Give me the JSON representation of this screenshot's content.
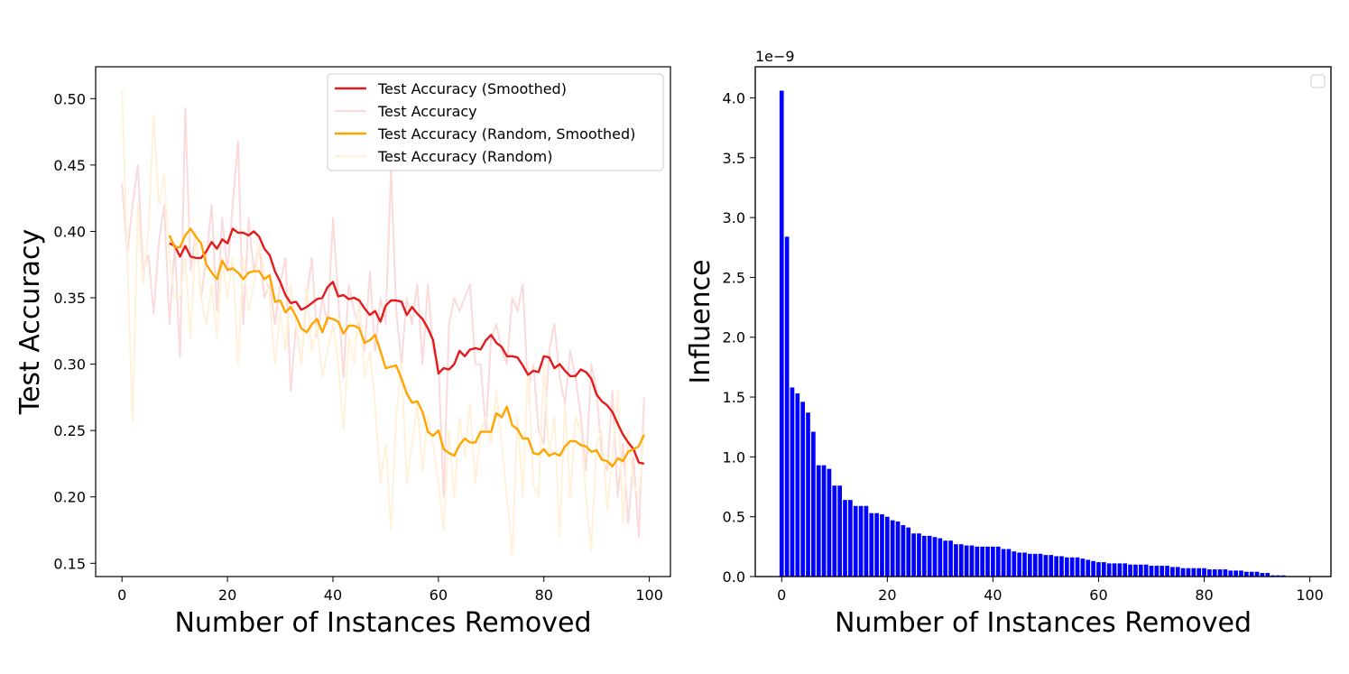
{
  "chart_data": [
    {
      "type": "line",
      "title": "",
      "xlabel": "Number of Instances Removed",
      "ylabel": "Test Accuracy",
      "xlim": [
        -5,
        104
      ],
      "ylim": [
        0.14,
        0.524
      ],
      "xticks": [
        0,
        20,
        40,
        60,
        80,
        100
      ],
      "yticks": [
        0.15,
        0.2,
        0.25,
        0.3,
        0.35,
        0.4,
        0.45,
        0.5
      ],
      "xtick_labels": [
        "0",
        "20",
        "40",
        "60",
        "80",
        "100"
      ],
      "ytick_labels": [
        "0.15",
        "0.20",
        "0.25",
        "0.30",
        "0.35",
        "0.40",
        "0.45",
        "0.50"
      ],
      "legend_position": "top-right",
      "series": [
        {
          "name": "Test Accuracy (Smoothed)",
          "color": "#e41a1c",
          "x": [
            9,
            10,
            11,
            12,
            13,
            14,
            15,
            16,
            17,
            18,
            19,
            20,
            21,
            22,
            23,
            24,
            25,
            26,
            27,
            28,
            29,
            30,
            31,
            32,
            33,
            34,
            35,
            36,
            37,
            38,
            39,
            40,
            41,
            42,
            43,
            44,
            45,
            46,
            47,
            48,
            49,
            50,
            51,
            52,
            53,
            54,
            55,
            56,
            57,
            58,
            59,
            60,
            61,
            62,
            63,
            64,
            65,
            66,
            67,
            68,
            69,
            70,
            71,
            72,
            73,
            74,
            75,
            76,
            77,
            78,
            79,
            80,
            81,
            82,
            83,
            84,
            85,
            86,
            87,
            88,
            89,
            90,
            91,
            92,
            93,
            94,
            95,
            96,
            97,
            98,
            99
          ],
          "values": [
            0.391,
            0.389,
            0.381,
            0.389,
            0.381,
            0.38,
            0.38,
            0.385,
            0.392,
            0.387,
            0.394,
            0.391,
            0.402,
            0.399,
            0.399,
            0.397,
            0.4,
            0.396,
            0.387,
            0.382,
            0.37,
            0.362,
            0.352,
            0.346,
            0.347,
            0.341,
            0.343,
            0.346,
            0.349,
            0.35,
            0.358,
            0.362,
            0.351,
            0.352,
            0.349,
            0.35,
            0.348,
            0.342,
            0.337,
            0.34,
            0.332,
            0.344,
            0.348,
            0.348,
            0.347,
            0.337,
            0.343,
            0.338,
            0.334,
            0.327,
            0.318,
            0.293,
            0.297,
            0.296,
            0.3,
            0.31,
            0.306,
            0.311,
            0.312,
            0.311,
            0.318,
            0.322,
            0.316,
            0.313,
            0.306,
            0.306,
            0.305,
            0.299,
            0.292,
            0.295,
            0.294,
            0.306,
            0.305,
            0.297,
            0.3,
            0.295,
            0.291,
            0.291,
            0.296,
            0.294,
            0.289,
            0.277,
            0.272,
            0.269,
            0.264,
            0.255,
            0.247,
            0.241,
            0.236,
            0.226,
            0.225
          ]
        },
        {
          "name": "Test Accuracy",
          "color": "#fbdadb",
          "x": [
            0,
            1,
            2,
            3,
            4,
            5,
            6,
            7,
            8,
            9,
            10,
            11,
            12,
            13,
            14,
            15,
            16,
            17,
            18,
            19,
            20,
            21,
            22,
            23,
            24,
            25,
            26,
            27,
            28,
            29,
            30,
            31,
            32,
            33,
            34,
            35,
            36,
            37,
            38,
            39,
            40,
            41,
            42,
            43,
            44,
            45,
            46,
            47,
            48,
            49,
            50,
            51,
            52,
            53,
            54,
            55,
            56,
            57,
            58,
            59,
            60,
            61,
            62,
            63,
            64,
            65,
            66,
            67,
            68,
            69,
            70,
            71,
            72,
            73,
            74,
            75,
            76,
            77,
            78,
            79,
            80,
            81,
            82,
            83,
            84,
            85,
            86,
            87,
            88,
            89,
            90,
            91,
            92,
            93,
            94,
            95,
            96,
            97,
            98,
            99
          ],
          "values": [
            0.436,
            0.383,
            0.42,
            0.45,
            0.37,
            0.382,
            0.338,
            0.392,
            0.42,
            0.33,
            0.39,
            0.305,
            0.493,
            0.37,
            0.4,
            0.35,
            0.38,
            0.42,
            0.34,
            0.41,
            0.37,
            0.42,
            0.468,
            0.33,
            0.41,
            0.37,
            0.39,
            0.35,
            0.36,
            0.33,
            0.36,
            0.38,
            0.28,
            0.33,
            0.3,
            0.35,
            0.38,
            0.32,
            0.35,
            0.33,
            0.41,
            0.35,
            0.29,
            0.36,
            0.34,
            0.33,
            0.31,
            0.37,
            0.31,
            0.35,
            0.33,
            0.447,
            0.34,
            0.3,
            0.35,
            0.33,
            0.36,
            0.3,
            0.36,
            0.31,
            0.3,
            0.2,
            0.33,
            0.35,
            0.34,
            0.35,
            0.36,
            0.3,
            0.3,
            0.25,
            0.32,
            0.33,
            0.31,
            0.3,
            0.35,
            0.34,
            0.36,
            0.28,
            0.3,
            0.25,
            0.24,
            0.31,
            0.33,
            0.29,
            0.27,
            0.31,
            0.29,
            0.26,
            0.22,
            0.3,
            0.28,
            0.23,
            0.22,
            0.28,
            0.2,
            0.24,
            0.18,
            0.23,
            0.17,
            0.275
          ]
        },
        {
          "name": "Test Accuracy (Random, Smoothed)",
          "color": "#ffa500",
          "x": [
            9,
            10,
            11,
            12,
            13,
            14,
            15,
            16,
            17,
            18,
            19,
            20,
            21,
            22,
            23,
            24,
            25,
            26,
            27,
            28,
            29,
            30,
            31,
            32,
            33,
            34,
            35,
            36,
            37,
            38,
            39,
            40,
            41,
            42,
            43,
            44,
            45,
            46,
            47,
            48,
            49,
            50,
            51,
            52,
            53,
            54,
            55,
            56,
            57,
            58,
            59,
            60,
            61,
            62,
            63,
            64,
            65,
            66,
            67,
            68,
            69,
            70,
            71,
            72,
            73,
            74,
            75,
            76,
            77,
            78,
            79,
            80,
            81,
            82,
            83,
            84,
            85,
            86,
            87,
            88,
            89,
            90,
            91,
            92,
            93,
            94,
            95,
            96,
            97,
            98,
            99
          ],
          "values": [
            0.397,
            0.388,
            0.388,
            0.397,
            0.402,
            0.396,
            0.391,
            0.375,
            0.369,
            0.364,
            0.378,
            0.371,
            0.372,
            0.369,
            0.364,
            0.369,
            0.37,
            0.37,
            0.364,
            0.367,
            0.347,
            0.348,
            0.339,
            0.343,
            0.336,
            0.327,
            0.324,
            0.33,
            0.334,
            0.324,
            0.335,
            0.334,
            0.332,
            0.323,
            0.329,
            0.329,
            0.327,
            0.316,
            0.318,
            0.322,
            0.31,
            0.297,
            0.298,
            0.299,
            0.289,
            0.278,
            0.271,
            0.272,
            0.264,
            0.249,
            0.246,
            0.25,
            0.236,
            0.233,
            0.231,
            0.239,
            0.244,
            0.241,
            0.241,
            0.249,
            0.249,
            0.249,
            0.263,
            0.26,
            0.268,
            0.254,
            0.251,
            0.244,
            0.244,
            0.233,
            0.232,
            0.236,
            0.231,
            0.233,
            0.231,
            0.238,
            0.242,
            0.242,
            0.239,
            0.238,
            0.234,
            0.235,
            0.228,
            0.227,
            0.223,
            0.229,
            0.227,
            0.234,
            0.236,
            0.238,
            0.247
          ]
        },
        {
          "name": "Test Accuracy (Random)",
          "color": "#fff1da",
          "x": [
            0,
            1,
            2,
            3,
            4,
            5,
            6,
            7,
            8,
            9,
            10,
            11,
            12,
            13,
            14,
            15,
            16,
            17,
            18,
            19,
            20,
            21,
            22,
            23,
            24,
            25,
            26,
            27,
            28,
            29,
            30,
            31,
            32,
            33,
            34,
            35,
            36,
            37,
            38,
            39,
            40,
            41,
            42,
            43,
            44,
            45,
            46,
            47,
            48,
            49,
            50,
            51,
            52,
            53,
            54,
            55,
            56,
            57,
            58,
            59,
            60,
            61,
            62,
            63,
            64,
            65,
            66,
            67,
            68,
            69,
            70,
            71,
            72,
            73,
            74,
            75,
            76,
            77,
            78,
            79,
            80,
            81,
            82,
            83,
            84,
            85,
            86,
            87,
            88,
            89,
            90,
            91,
            92,
            93,
            94,
            95,
            96,
            97,
            98,
            99
          ],
          "values": [
            0.507,
            0.38,
            0.257,
            0.42,
            0.36,
            0.4,
            0.488,
            0.42,
            0.443,
            0.38,
            0.35,
            0.35,
            0.38,
            0.32,
            0.4,
            0.35,
            0.33,
            0.36,
            0.32,
            0.38,
            0.35,
            0.38,
            0.3,
            0.38,
            0.34,
            0.36,
            0.39,
            0.37,
            0.35,
            0.3,
            0.34,
            0.31,
            0.36,
            0.33,
            0.3,
            0.36,
            0.31,
            0.33,
            0.29,
            0.31,
            0.33,
            0.3,
            0.25,
            0.32,
            0.3,
            0.35,
            0.29,
            0.31,
            0.27,
            0.21,
            0.24,
            0.175,
            0.26,
            0.3,
            0.21,
            0.24,
            0.27,
            0.22,
            0.26,
            0.24,
            0.21,
            0.175,
            0.25,
            0.2,
            0.26,
            0.23,
            0.27,
            0.21,
            0.25,
            0.26,
            0.24,
            0.28,
            0.24,
            0.2,
            0.157,
            0.26,
            0.2,
            0.3,
            0.21,
            0.2,
            0.3,
            0.23,
            0.26,
            0.17,
            0.27,
            0.2,
            0.26,
            0.25,
            0.2,
            0.16,
            0.24,
            0.25,
            0.19,
            0.23,
            0.28,
            0.18,
            0.25,
            0.21,
            0.2,
            0.25
          ]
        }
      ]
    },
    {
      "type": "bar",
      "title": "",
      "xlabel": "Number of Instances Removed",
      "ylabel": "Influence",
      "offset_text": "1e−9",
      "xlim": [
        -5,
        104
      ],
      "ylim": [
        0,
        4.26
      ],
      "xticks": [
        0,
        20,
        40,
        60,
        80,
        100
      ],
      "yticks": [
        0.0,
        0.5,
        1.0,
        1.5,
        2.0,
        2.5,
        3.0,
        3.5,
        4.0
      ],
      "xtick_labels": [
        "0",
        "20",
        "40",
        "60",
        "80",
        "100"
      ],
      "ytick_labels": [
        "0.0",
        "0.5",
        "1.0",
        "1.5",
        "2.0",
        "2.5",
        "3.0",
        "3.5",
        "4.0"
      ],
      "legend_position": "top-right",
      "legend_entries": [],
      "bar_color": "#0000ff",
      "series": [
        {
          "name": "Influence",
          "values": [
            4.06,
            2.84,
            1.58,
            1.53,
            1.46,
            1.37,
            1.21,
            0.93,
            0.93,
            0.9,
            0.76,
            0.76,
            0.64,
            0.64,
            0.59,
            0.59,
            0.59,
            0.53,
            0.53,
            0.52,
            0.5,
            0.47,
            0.46,
            0.43,
            0.41,
            0.36,
            0.36,
            0.34,
            0.34,
            0.33,
            0.32,
            0.3,
            0.3,
            0.27,
            0.27,
            0.26,
            0.26,
            0.25,
            0.25,
            0.25,
            0.25,
            0.25,
            0.23,
            0.23,
            0.21,
            0.2,
            0.2,
            0.19,
            0.19,
            0.19,
            0.18,
            0.18,
            0.17,
            0.17,
            0.16,
            0.16,
            0.16,
            0.15,
            0.14,
            0.13,
            0.12,
            0.12,
            0.11,
            0.11,
            0.11,
            0.11,
            0.1,
            0.1,
            0.1,
            0.1,
            0.09,
            0.09,
            0.09,
            0.09,
            0.08,
            0.08,
            0.07,
            0.07,
            0.07,
            0.07,
            0.07,
            0.06,
            0.06,
            0.06,
            0.06,
            0.05,
            0.05,
            0.05,
            0.04,
            0.04,
            0.04,
            0.03,
            0.03,
            0.01,
            0.01,
            0.01,
            0.0,
            0.0,
            0.0,
            0.0
          ]
        }
      ]
    }
  ]
}
